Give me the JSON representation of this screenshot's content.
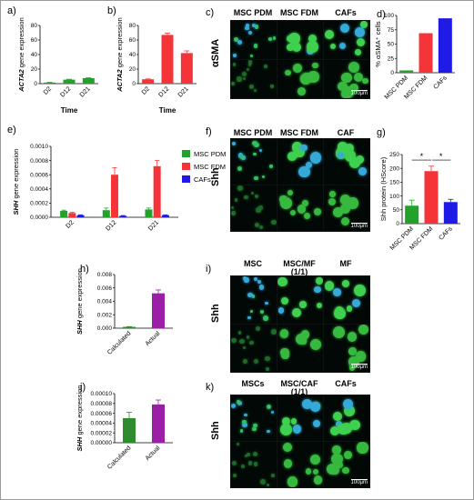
{
  "colors": {
    "green": "#22a22a",
    "red": "#f5343a",
    "blue": "#1f1ae6",
    "purple": "#9b1fa6",
    "darkgreen": "#2e8b2e"
  },
  "panels": {
    "a": {
      "label": "a)"
    },
    "b": {
      "label": "b)"
    },
    "c": {
      "label": "c)"
    },
    "d": {
      "label": "d)"
    },
    "e": {
      "label": "e)"
    },
    "f": {
      "label": "f)"
    },
    "g": {
      "label": "g)"
    },
    "h": {
      "label": "h)"
    },
    "i": {
      "label": "i)"
    },
    "j": {
      "label": "j)"
    },
    "k": {
      "label": "k)"
    }
  },
  "chart_data": [
    {
      "id": "a",
      "type": "bar",
      "ylabel_gene": "ACTA2",
      "ylabel_rest": " gene expression",
      "xlabel": "Time",
      "categories": [
        "D2",
        "D12",
        "D21"
      ],
      "values": [
        1.5,
        5.5,
        7.5
      ],
      "errors": [
        0.3,
        0.5,
        0.6
      ],
      "ylim": [
        0,
        80
      ],
      "yticks": [
        "0",
        "20",
        "40",
        "60",
        "80"
      ],
      "colors": [
        "#22a22a",
        "#22a22a",
        "#22a22a"
      ]
    },
    {
      "id": "b",
      "type": "bar",
      "ylabel_gene": "ACTA2",
      "ylabel_rest": " gene expression",
      "xlabel": "Time",
      "categories": [
        "D2",
        "D12",
        "D21"
      ],
      "values": [
        6,
        67,
        42
      ],
      "errors": [
        0.5,
        2.5,
        3
      ],
      "ylim": [
        0,
        80
      ],
      "yticks": [
        "0",
        "20",
        "40",
        "60",
        "80"
      ],
      "colors": [
        "#f5343a",
        "#f5343a",
        "#f5343a"
      ]
    },
    {
      "id": "d",
      "type": "bar",
      "ylabel": "% αSMA⁺ cells",
      "categories": [
        "MSC PDM",
        "MSC FDM",
        "CAFs"
      ],
      "values": [
        4,
        69,
        95
      ],
      "errors": [
        0,
        0,
        0
      ],
      "ylim": [
        0,
        100
      ],
      "yticks": [
        "0",
        "25",
        "50",
        "75",
        "100"
      ],
      "colors": [
        "#22a22a",
        "#f5343a",
        "#1f1ae6"
      ]
    },
    {
      "id": "e",
      "type": "bar",
      "ylabel_gene": "SHH",
      "ylabel_rest": " gene expression",
      "categories": [
        "D2",
        "D12",
        "D21"
      ],
      "series": [
        {
          "name": "MSC PDM",
          "values": [
            9e-05,
            0.0001,
            0.00011
          ],
          "errors": [
            1e-05,
            3e-05,
            2e-05
          ],
          "color": "#22a22a"
        },
        {
          "name": "MSC FDM",
          "values": [
            6e-05,
            0.0006,
            0.00072
          ],
          "errors": [
            1e-05,
            0.0001,
            8e-05
          ],
          "color": "#f5343a"
        },
        {
          "name": "CAFs",
          "values": [
            3e-05,
            2e-05,
            3e-05
          ],
          "errors": [
            5e-06,
            5e-06,
            5e-06
          ],
          "color": "#1f1ae6"
        }
      ],
      "ylim": [
        0,
        0.001
      ],
      "yticks": [
        "0.0000",
        "0.0002",
        "0.0004",
        "0.0006",
        "0.0008",
        "0.0010"
      ]
    },
    {
      "id": "g",
      "type": "bar",
      "ylabel": "Shh protein (HScore)",
      "categories": [
        "MSC PDM",
        "MSC FDM",
        "CAFs"
      ],
      "values": [
        65,
        190,
        78
      ],
      "errors": [
        20,
        18,
        10
      ],
      "ylim": [
        0,
        250
      ],
      "yticks": [
        "0",
        "50",
        "100",
        "150",
        "200",
        "250"
      ],
      "colors": [
        "#22a22a",
        "#f5343a",
        "#1f1ae6"
      ],
      "annotations": [
        "*",
        "*"
      ]
    },
    {
      "id": "h",
      "type": "bar",
      "ylabel_gene": "SHH",
      "ylabel_rest": " gene expression",
      "categories": [
        "Calculated",
        "Actual"
      ],
      "values": [
        0.0002,
        0.0052
      ],
      "errors": [
        3e-05,
        0.0005
      ],
      "ylim": [
        0,
        0.008
      ],
      "yticks": [
        "0.000",
        "0.002",
        "0.004",
        "0.006",
        "0.008"
      ],
      "colors": [
        "#2e8b2e",
        "#9b1fa6"
      ]
    },
    {
      "id": "j",
      "type": "bar",
      "ylabel_gene": "SHH",
      "ylabel_rest": " gene expression",
      "categories": [
        "Calculated",
        "Actual"
      ],
      "values": [
        5e-05,
        7.8e-05
      ],
      "errors": [
        1.2e-05,
        9e-06
      ],
      "ylim": [
        0,
        0.0001
      ],
      "yticks": [
        "0.00000",
        "0.00002",
        "0.00004",
        "0.00006",
        "0.00008",
        "0.00010"
      ],
      "colors": [
        "#2e8b2e",
        "#9b1fa6"
      ]
    }
  ],
  "micrographs": {
    "c": {
      "headers": [
        "MSC PDM",
        "MSC FDM",
        "CAFs"
      ],
      "row_label": "αSMA",
      "scale": "100μm"
    },
    "f": {
      "headers": [
        "MSC PDM",
        "MSC FDM",
        "CAF"
      ],
      "row_label": "Shh",
      "scale": "100μm"
    },
    "i": {
      "headers": [
        "MSC",
        "MSC/MF\n(1/1)",
        "MF"
      ],
      "row_label": "Shh",
      "scale": "100μm"
    },
    "k": {
      "headers": [
        "MSCs",
        "MSC/CAF\n(1/1)",
        "CAFs"
      ],
      "row_label": "Shh",
      "scale": "100μm"
    }
  }
}
